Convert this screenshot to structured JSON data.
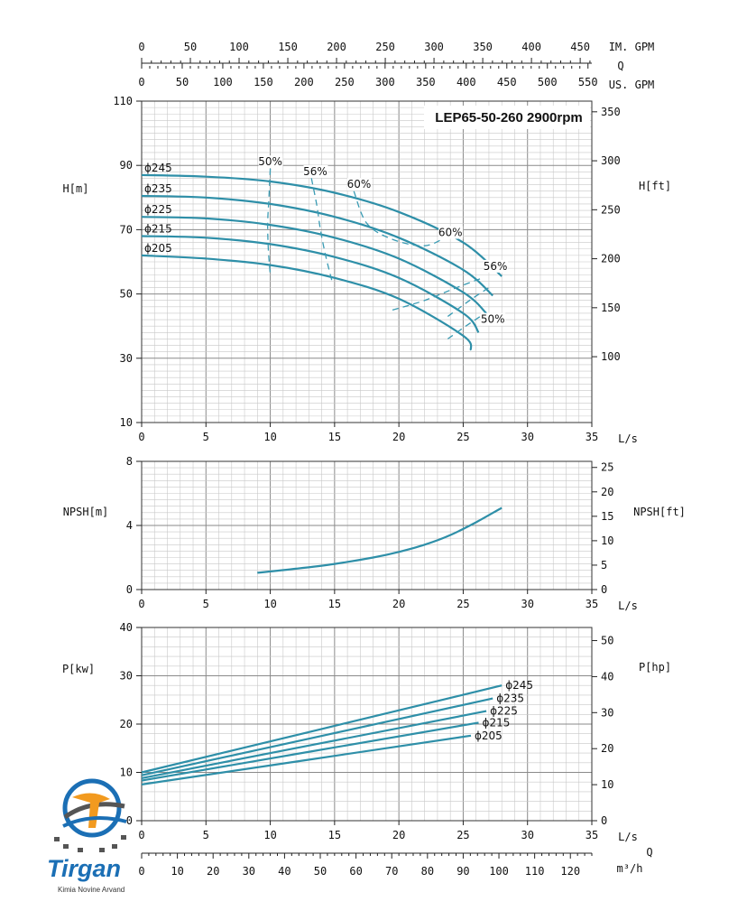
{
  "chart_data": [
    {
      "type": "line",
      "title": "LEP65-50-260 2900rpm",
      "xlabel": "L/s",
      "ylabel": "H[m]",
      "ylabel_right": "H[ft]",
      "xlim": [
        0,
        35
      ],
      "ylim": [
        10,
        110
      ],
      "xticks": [
        "0",
        "5",
        "10",
        "15",
        "20",
        "25",
        "30",
        "35"
      ],
      "yticks": [
        "10",
        "30",
        "50",
        "70",
        "90",
        "110"
      ],
      "yticks_right": [
        "100",
        "150",
        "200",
        "250",
        "300",
        "350"
      ],
      "top_axes": [
        {
          "label": "IM. GPM",
          "ticks": [
            "0",
            "50",
            "100",
            "150",
            "200",
            "250",
            "300",
            "350",
            "400",
            "450"
          ]
        },
        {
          "label": "Q",
          "ticks": []
        },
        {
          "label": "US. GPM",
          "ticks": [
            "0",
            "50",
            "100",
            "150",
            "200",
            "250",
            "300",
            "350",
            "400",
            "450",
            "500",
            "550"
          ]
        }
      ],
      "grid": true,
      "series": [
        {
          "name": "ϕ245",
          "x": [
            0,
            5,
            10,
            15,
            20,
            25,
            28
          ],
          "y": [
            87,
            86.5,
            85,
            81.5,
            75.5,
            66,
            55.5
          ]
        },
        {
          "name": "ϕ235",
          "x": [
            0,
            5,
            10,
            15,
            20,
            25,
            27.3
          ],
          "y": [
            80.5,
            80,
            78,
            74,
            67.5,
            57.5,
            49.5
          ]
        },
        {
          "name": "ϕ225",
          "x": [
            0,
            5,
            10,
            15,
            20,
            25,
            26.8
          ],
          "y": [
            74,
            73.5,
            71.5,
            67.5,
            61,
            50.5,
            44
          ]
        },
        {
          "name": "ϕ215",
          "x": [
            0,
            5,
            10,
            15,
            20,
            25,
            26.2
          ],
          "y": [
            68,
            67.5,
            65.5,
            61.5,
            55,
            44,
            38
          ]
        },
        {
          "name": "ϕ205",
          "x": [
            0,
            5,
            10,
            15,
            20,
            25,
            25.6
          ],
          "y": [
            62,
            61,
            59,
            55,
            48.5,
            37,
            32.5
          ]
        }
      ],
      "efficiency_curves": [
        {
          "label": "50%",
          "x": [
            10,
            9.9,
            9.8,
            9.85,
            10
          ],
          "y": [
            89,
            80,
            72,
            64,
            56
          ]
        },
        {
          "label": "56%",
          "x": [
            13.2,
            13.6,
            13.9,
            14.3,
            14.8
          ],
          "y": [
            86,
            78,
            70,
            62,
            54
          ]
        },
        {
          "label": "60%",
          "x": [
            16.5,
            17.5,
            19.5,
            22,
            23.8
          ],
          "y": [
            82,
            72,
            67,
            65,
            68
          ]
        },
        {
          "label": "60%",
          "x": [
            19.5,
            22,
            24.5,
            26.5
          ],
          "y": [
            45,
            48,
            52,
            55
          ]
        },
        {
          "label": "56%",
          "x": [
            23.8,
            25.5,
            27
          ],
          "y": [
            43,
            48,
            52
          ]
        },
        {
          "label": "50%",
          "x": [
            23.8,
            25.2,
            26.7
          ],
          "y": [
            36,
            40,
            44
          ]
        }
      ],
      "efficiency_labels": [
        {
          "text": "50%",
          "x": 10,
          "y": 90
        },
        {
          "text": "56%",
          "x": 13.5,
          "y": 87
        },
        {
          "text": "60%",
          "x": 16.9,
          "y": 83
        },
        {
          "text": "60%",
          "x": 24,
          "y": 68
        },
        {
          "text": "56%",
          "x": 27.5,
          "y": 57.5
        },
        {
          "text": "50%",
          "x": 27.3,
          "y": 41
        }
      ]
    },
    {
      "type": "line",
      "xlabel": "L/s",
      "ylabel": "NPSH[m]",
      "ylabel_right": "NPSH[ft]",
      "xlim": [
        0,
        35
      ],
      "ylim": [
        0,
        8
      ],
      "xticks": [
        "0",
        "5",
        "10",
        "15",
        "20",
        "25",
        "30",
        "35"
      ],
      "yticks": [
        "0",
        "4",
        "8"
      ],
      "yticks_right": [
        "0",
        "5",
        "10",
        "15",
        "20",
        "25"
      ],
      "grid": true,
      "series": [
        {
          "name": "",
          "x": [
            9,
            12,
            15,
            18,
            20,
            22,
            24,
            26,
            28
          ],
          "y": [
            1.05,
            1.3,
            1.6,
            2.0,
            2.35,
            2.8,
            3.4,
            4.2,
            5.1
          ]
        }
      ]
    },
    {
      "type": "line",
      "xlabel": "L/s",
      "ylabel": "P[kw]",
      "ylabel_right": "P[hp]",
      "xlim": [
        0,
        35
      ],
      "ylim": [
        0,
        40
      ],
      "xticks": [
        "0",
        "5",
        "10",
        "15",
        "20",
        "25",
        "30",
        "35"
      ],
      "yticks": [
        "0",
        "10",
        "20",
        "30",
        "40"
      ],
      "yticks_right": [
        "0",
        "10",
        "20",
        "30",
        "40",
        "50"
      ],
      "bottom_axis": {
        "label": "m³/h",
        "title": "Q",
        "ticks": [
          "0",
          "10",
          "20",
          "30",
          "40",
          "50",
          "60",
          "70",
          "80",
          "90",
          "100",
          "110",
          "120"
        ]
      },
      "grid": true,
      "series": [
        {
          "name": "ϕ245",
          "x": [
            0,
            28
          ],
          "y": [
            10,
            28
          ]
        },
        {
          "name": "ϕ235",
          "x": [
            0,
            27.3
          ],
          "y": [
            9.4,
            25.3
          ]
        },
        {
          "name": "ϕ225",
          "x": [
            0,
            26.8
          ],
          "y": [
            8.8,
            22.7
          ]
        },
        {
          "name": "ϕ215",
          "x": [
            0,
            26.2
          ],
          "y": [
            8.3,
            20.3
          ]
        },
        {
          "name": "ϕ205",
          "x": [
            0,
            25.6
          ],
          "y": [
            7.5,
            17.6
          ]
        }
      ]
    }
  ],
  "logo": {
    "brand": "Tirgan",
    "tagline": "Kimia Novine Arvand"
  },
  "colors": {
    "curve": "#2e8fa8",
    "grid_major": "#8a8a8a",
    "grid_minor": "#c8c8c8",
    "logo_blue": "#1b6fb5",
    "logo_orange": "#f29a1f"
  }
}
